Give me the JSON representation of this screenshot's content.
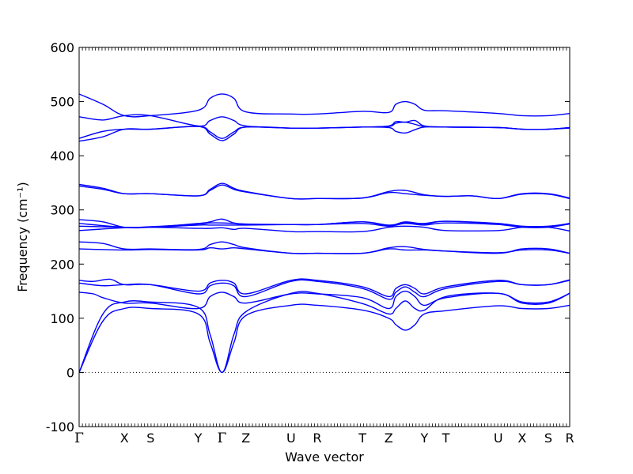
{
  "chart_data": {
    "type": "line",
    "title": "",
    "xlabel": "Wave vector",
    "ylabel": "Frequency (cm⁻¹)",
    "ylim": [
      -100,
      600
    ],
    "yticks": [
      -100,
      0,
      100,
      200,
      300,
      400,
      500,
      600
    ],
    "grid": false,
    "legend": "none",
    "line_color": "#0000ff",
    "zero_line": {
      "y": 0,
      "style": "dotted"
    },
    "xlim": [
      0,
      20.6
    ],
    "high_symmetry_points": [
      {
        "label": "Γ",
        "x": 0
      },
      {
        "label": "X",
        "x": 1.9
      },
      {
        "label": "S",
        "x": 3.0
      },
      {
        "label": "Y",
        "x": 5.0
      },
      {
        "label": "Γ",
        "x": 6.0
      },
      {
        "label": "Z",
        "x": 7.0
      },
      {
        "label": "U",
        "x": 8.9
      },
      {
        "label": "R",
        "x": 10.0
      },
      {
        "label": "T",
        "x": 11.9
      },
      {
        "label": "Z",
        "x": 13.0
      },
      {
        "label": "Y",
        "x": 14.5
      },
      {
        "label": "T",
        "x": 15.4
      },
      {
        "label": "U",
        "x": 17.6
      },
      {
        "label": "X",
        "x": 18.6
      },
      {
        "label": "S",
        "x": 19.7
      },
      {
        "label": "R",
        "x": 20.6
      }
    ],
    "series": [
      {
        "x": [
          0,
          1.0,
          1.9,
          3.0,
          5.0,
          5.5,
          6.0,
          6.5,
          7.0,
          8.9,
          10.0,
          11.9,
          13.0,
          13.3,
          13.7,
          14.1,
          14.5,
          15.4,
          17.6,
          18.6,
          19.7,
          20.6
        ],
        "y": [
          0,
          95,
          118,
          118,
          108,
          55,
          0,
          55,
          105,
          124,
          124,
          115,
          100,
          88,
          78,
          88,
          108,
          114,
          123,
          118,
          118,
          124
        ]
      },
      {
        "x": [
          0,
          1.0,
          1.9,
          3.0,
          5.0,
          5.5,
          6.0,
          6.5,
          7.0,
          8.9,
          10.0,
          11.9,
          13.0,
          13.3,
          13.7,
          14.1,
          14.5,
          15.4,
          17.6,
          18.6,
          19.7,
          20.6
        ],
        "y": [
          0,
          108,
          130,
          130,
          120,
          70,
          0,
          70,
          112,
          146,
          146,
          127,
          108,
          118,
          132,
          118,
          115,
          140,
          146,
          130,
          130,
          146
        ]
      },
      {
        "x": [
          0,
          0.6,
          1.0,
          1.9,
          3.0,
          5.0,
          5.5,
          6.0,
          6.5,
          7.0,
          8.9,
          10.0,
          11.9,
          13.0,
          13.3,
          13.7,
          14.1,
          14.5,
          15.4,
          17.6,
          18.6,
          19.7,
          20.6
        ],
        "y": [
          148,
          145,
          138,
          128,
          128,
          118,
          140,
          148,
          140,
          128,
          145,
          145,
          138,
          118,
          140,
          150,
          140,
          124,
          138,
          146,
          128,
          128,
          146
        ]
      },
      {
        "x": [
          0,
          1.0,
          1.9,
          3.0,
          5.0,
          5.5,
          6.0,
          6.5,
          7.0,
          8.9,
          10.0,
          11.9,
          13.0,
          13.3,
          13.7,
          14.1,
          14.5,
          15.4,
          17.6,
          18.6,
          19.7,
          20.6
        ],
        "y": [
          165,
          160,
          162,
          162,
          145,
          160,
          165,
          160,
          140,
          168,
          168,
          155,
          135,
          148,
          158,
          148,
          140,
          155,
          168,
          162,
          162,
          170
        ]
      },
      {
        "x": [
          0,
          0.6,
          1.3,
          1.9,
          3.0,
          5.0,
          5.5,
          6.0,
          6.5,
          7.0,
          8.9,
          10.0,
          11.9,
          13.0,
          13.3,
          13.7,
          14.1,
          14.5,
          15.4,
          17.6,
          18.6,
          19.7,
          20.6
        ],
        "y": [
          170,
          168,
          172,
          162,
          162,
          150,
          165,
          170,
          165,
          145,
          170,
          170,
          158,
          140,
          155,
          162,
          155,
          145,
          158,
          170,
          162,
          162,
          171
        ]
      },
      {
        "x": [
          0,
          1.9,
          3.0,
          5.0,
          5.5,
          6.0,
          6.5,
          7.0,
          8.9,
          10.0,
          11.9,
          13.0,
          13.7,
          14.5,
          15.4,
          17.6,
          18.6,
          19.7,
          20.6
        ],
        "y": [
          228,
          226,
          227,
          226,
          230,
          228,
          230,
          228,
          220,
          220,
          220,
          228,
          226,
          226,
          224,
          221,
          226,
          226,
          220
        ]
      },
      {
        "x": [
          0,
          1.0,
          1.9,
          3.0,
          5.0,
          5.5,
          6.0,
          6.5,
          7.0,
          8.9,
          10.0,
          11.9,
          13.0,
          13.7,
          14.5,
          15.4,
          17.6,
          18.6,
          19.7,
          20.6
        ],
        "y": [
          241,
          238,
          228,
          228,
          227,
          236,
          241,
          236,
          230,
          220,
          220,
          220,
          230,
          232,
          227,
          224,
          220,
          228,
          228,
          220
        ]
      },
      {
        "x": [
          0,
          1.9,
          3.0,
          5.0,
          5.5,
          6.0,
          6.5,
          7.0,
          8.9,
          10.0,
          11.9,
          13.0,
          13.7,
          14.5,
          15.4,
          17.6,
          18.6,
          19.7,
          20.6
        ],
        "y": [
          262,
          267,
          268,
          266,
          266,
          267,
          264,
          266,
          260,
          260,
          260,
          268,
          270,
          268,
          262,
          262,
          268,
          268,
          261
        ]
      },
      {
        "x": [
          0,
          1.9,
          3.0,
          5.0,
          5.5,
          6.0,
          6.5,
          7.0,
          8.9,
          10.0,
          11.9,
          13.0,
          13.7,
          14.5,
          15.4,
          17.6,
          18.6,
          19.7,
          20.6
        ],
        "y": [
          270,
          268,
          268,
          272,
          272,
          272,
          272,
          272,
          273,
          273,
          275,
          270,
          275,
          272,
          276,
          273,
          268,
          268,
          274
        ]
      },
      {
        "x": [
          0,
          1.9,
          3.0,
          5.0,
          5.5,
          6.0,
          6.5,
          7.0,
          8.9,
          10.0,
          11.9,
          13.0,
          13.7,
          14.5,
          15.4,
          17.6,
          18.6,
          19.7,
          20.6
        ],
        "y": [
          275,
          268,
          269,
          274,
          276,
          276,
          275,
          273,
          273,
          273,
          278,
          272,
          276,
          275,
          279,
          275,
          270,
          270,
          275
        ]
      },
      {
        "x": [
          0,
          1.0,
          1.9,
          3.0,
          5.0,
          5.5,
          6.0,
          6.5,
          7.0,
          8.9,
          10.0,
          11.9,
          13.0,
          13.7,
          14.5,
          15.4,
          17.6,
          18.6,
          19.7,
          20.6
        ],
        "y": [
          282,
          278,
          268,
          268,
          275,
          278,
          283,
          276,
          274,
          273,
          273,
          278,
          271,
          278,
          274,
          279,
          274,
          269,
          269,
          275
        ]
      },
      {
        "x": [
          0,
          1.0,
          1.9,
          3.0,
          5.0,
          5.5,
          6.0,
          6.5,
          7.0,
          8.9,
          10.0,
          11.9,
          13.0,
          13.7,
          14.5,
          15.4,
          16.5,
          17.6,
          18.6,
          19.7,
          20.6
        ],
        "y": [
          344,
          338,
          330,
          330,
          326,
          336,
          346,
          338,
          333,
          321,
          321,
          322,
          332,
          330,
          327,
          325,
          326,
          321,
          329,
          329,
          321
        ]
      },
      {
        "x": [
          0,
          1.0,
          1.9,
          3.0,
          5.0,
          5.5,
          6.0,
          6.5,
          7.0,
          8.9,
          10.0,
          11.9,
          13.0,
          13.7,
          14.5,
          15.4,
          16.5,
          17.6,
          18.6,
          19.7,
          20.6
        ],
        "y": [
          347,
          340,
          330,
          330,
          326,
          338,
          349,
          340,
          334,
          321,
          321,
          322,
          334,
          336,
          328,
          325,
          326,
          321,
          330,
          330,
          322
        ]
      },
      {
        "x": [
          0,
          1.0,
          1.9,
          3.0,
          5.0,
          5.5,
          6.0,
          6.5,
          7.0,
          8.9,
          10.0,
          11.9,
          13.0,
          13.3,
          13.7,
          14.1,
          14.5,
          15.4,
          17.6,
          18.6,
          19.7,
          20.6
        ],
        "y": [
          427,
          435,
          449,
          449,
          454,
          440,
          428,
          440,
          453,
          451,
          451,
          453,
          452,
          445,
          442,
          448,
          453,
          453,
          452,
          449,
          449,
          451
        ]
      },
      {
        "x": [
          0,
          1.0,
          1.9,
          3.0,
          5.0,
          5.5,
          6.0,
          6.5,
          7.0,
          8.9,
          10.0,
          11.9,
          13.0,
          13.3,
          13.7,
          14.1,
          14.5,
          15.4,
          17.6,
          18.6,
          19.7,
          20.6
        ],
        "y": [
          432,
          445,
          449,
          449,
          454,
          444,
          432,
          444,
          453,
          451,
          451,
          453,
          454,
          460,
          462,
          458,
          454,
          453,
          452,
          449,
          449,
          452
        ]
      },
      {
        "x": [
          0,
          1.0,
          1.9,
          3.0,
          5.0,
          5.5,
          6.0,
          6.5,
          7.0,
          8.9,
          10.0,
          11.9,
          13.0,
          13.3,
          13.7,
          14.1,
          14.5,
          15.4,
          17.6,
          18.6,
          19.7,
          20.6
        ],
        "y": [
          472,
          466,
          474,
          474,
          455,
          465,
          472,
          465,
          455,
          451,
          451,
          453,
          455,
          463,
          462,
          465,
          455,
          453,
          452,
          449,
          449,
          452
        ]
      },
      {
        "x": [
          0,
          1.0,
          1.9,
          3.0,
          5.0,
          5.5,
          6.0,
          6.5,
          7.0,
          8.9,
          10.0,
          11.9,
          13.0,
          13.3,
          13.7,
          14.1,
          14.5,
          15.4,
          17.6,
          18.6,
          19.7,
          20.6
        ],
        "y": [
          514,
          495,
          474,
          474,
          484,
          506,
          514,
          506,
          481,
          477,
          477,
          482,
          480,
          495,
          500,
          495,
          484,
          483,
          478,
          474,
          474,
          478
        ]
      }
    ]
  }
}
